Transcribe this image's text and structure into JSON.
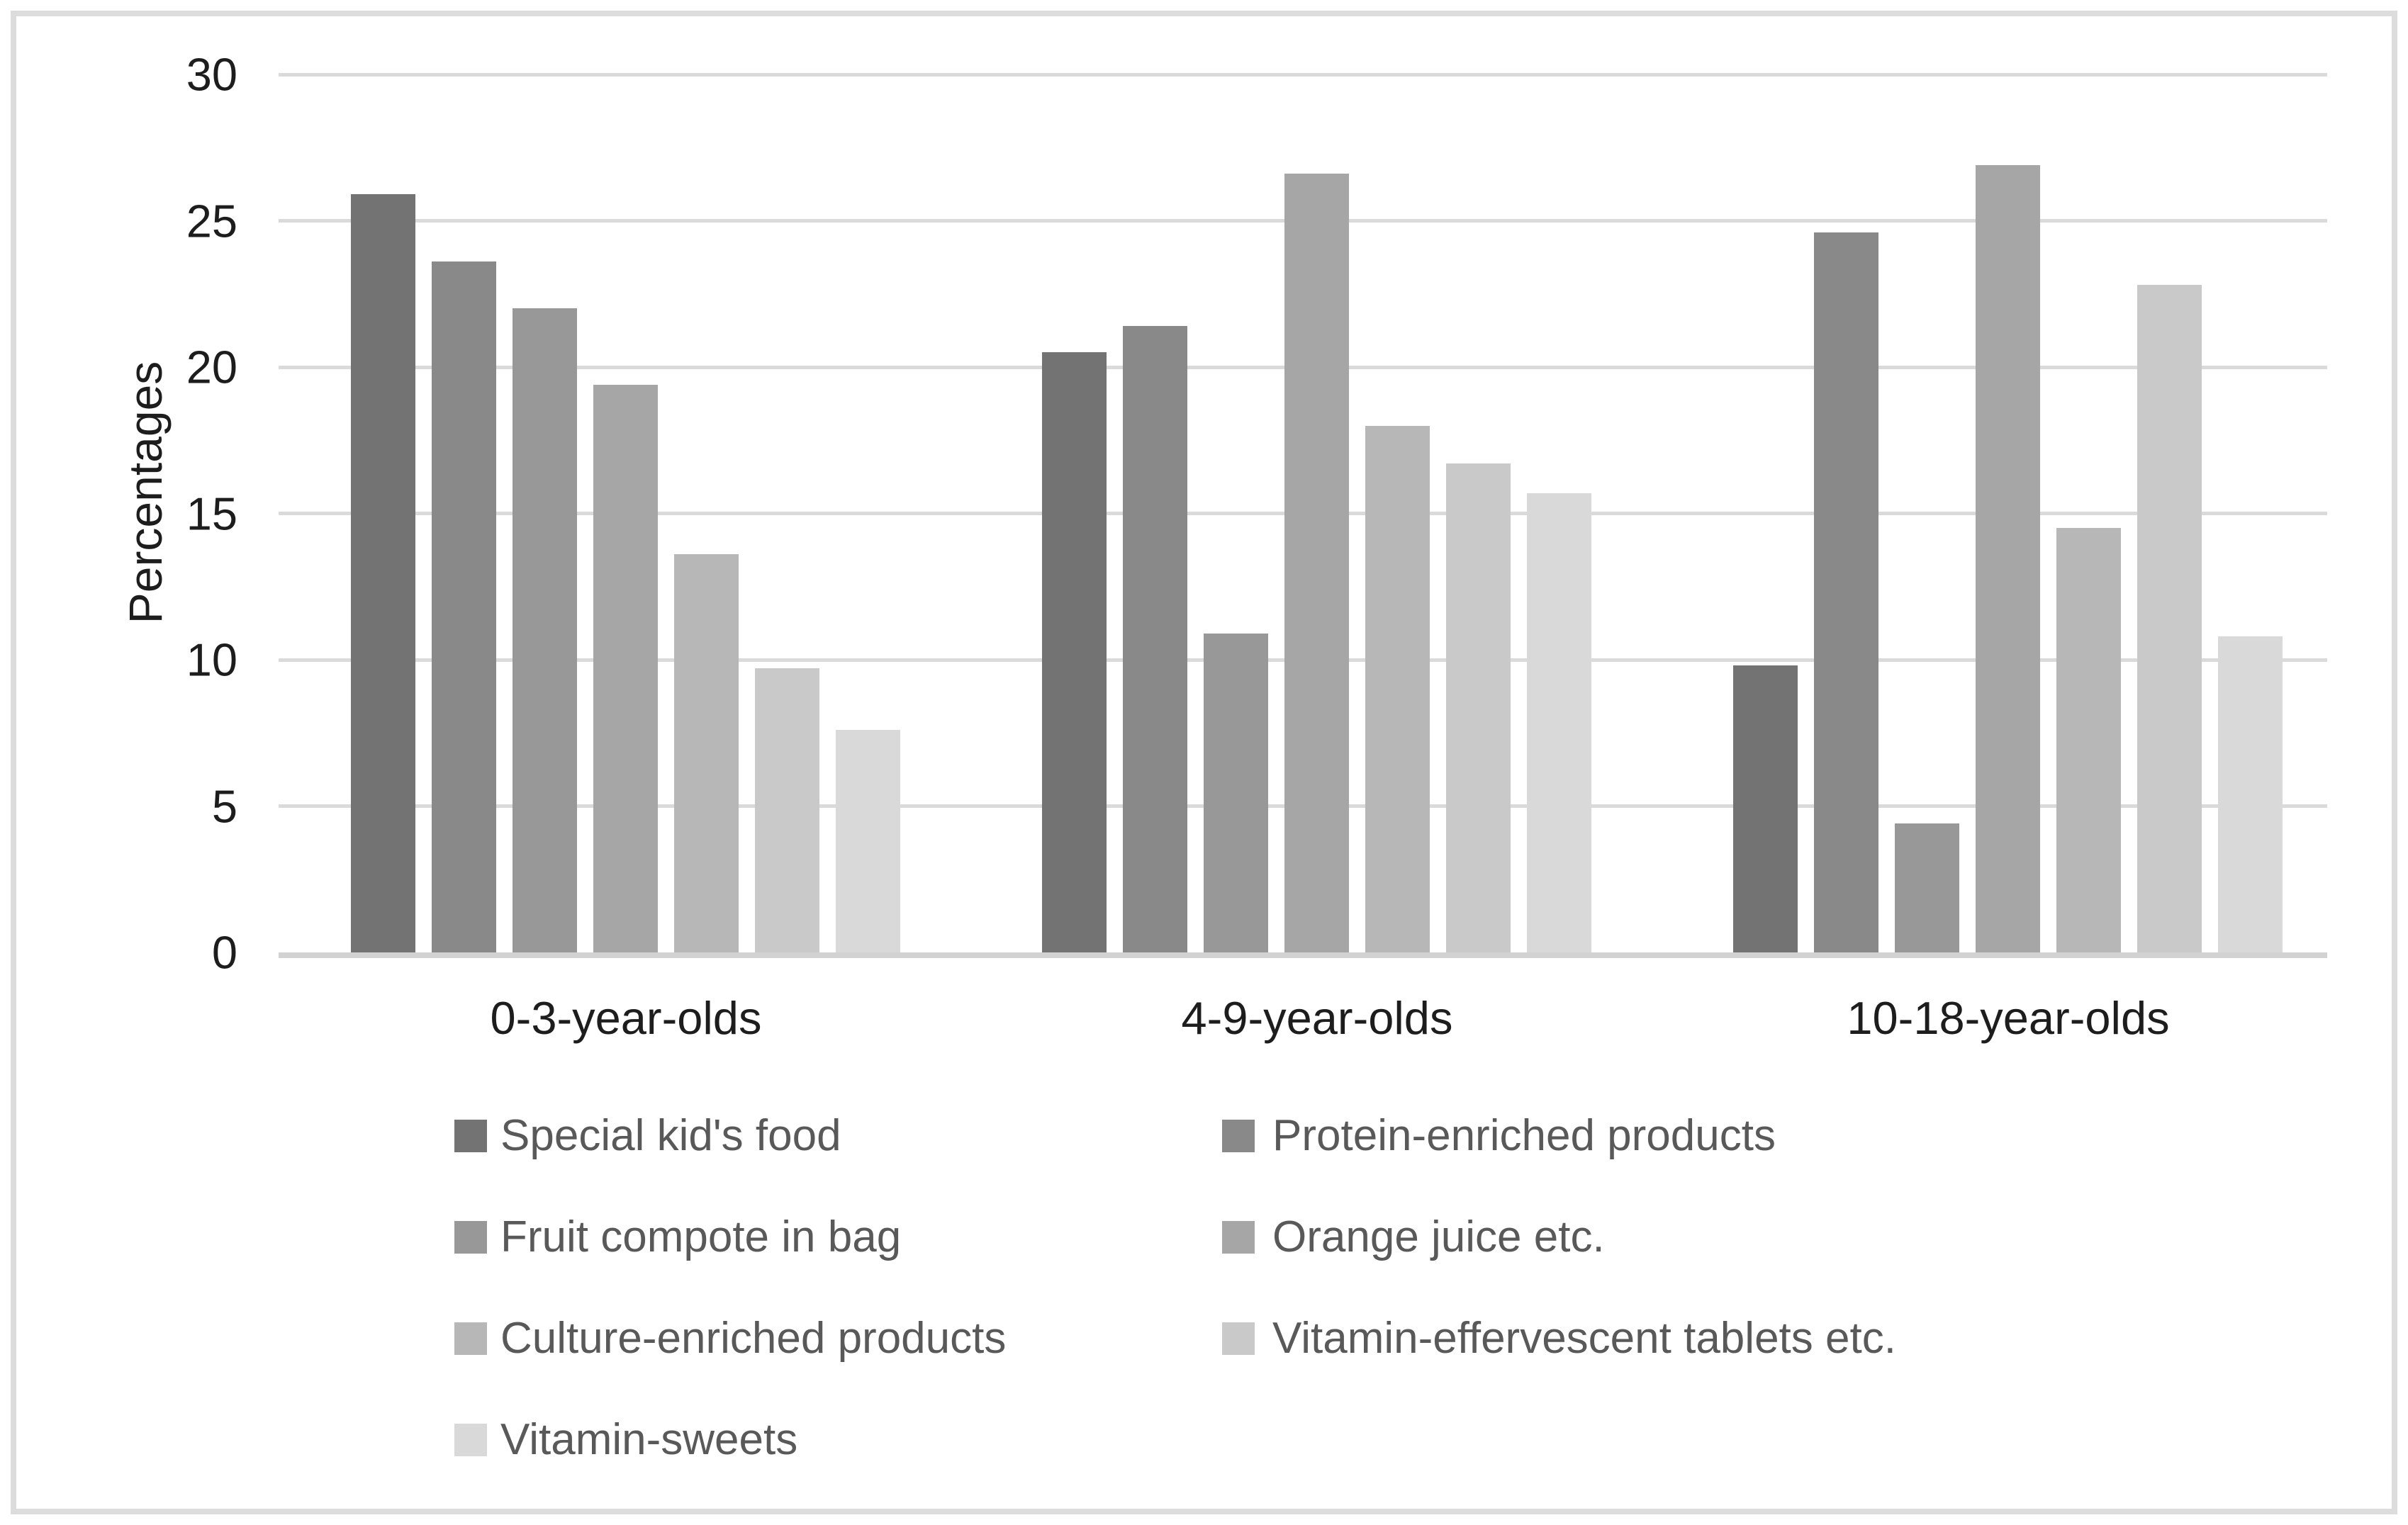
{
  "chart_data": {
    "type": "bar",
    "title": "",
    "xlabel": "",
    "ylabel": "Percentages",
    "ylim": [
      0,
      30
    ],
    "yticks": [
      0,
      5,
      10,
      15,
      20,
      25,
      30
    ],
    "grid": true,
    "legend_position": "bottom-two-columns",
    "background": "#ffffff",
    "frame_color": "#dcdcdc",
    "categories": [
      "0-3-year-olds",
      "4-9-year-olds",
      "10-18-year-olds"
    ],
    "series": [
      {
        "name": "Special kid's food",
        "color": "#737373",
        "values": [
          25.9,
          20.5,
          9.8
        ]
      },
      {
        "name": "Protein-enriched products",
        "color": "#898989",
        "values": [
          23.6,
          21.4,
          24.6
        ]
      },
      {
        "name": "Fruit compote in bag",
        "color": "#989898",
        "values": [
          22.0,
          10.9,
          4.4
        ]
      },
      {
        "name": "Orange juice etc.",
        "color": "#a6a6a6",
        "values": [
          19.4,
          26.6,
          26.9
        ]
      },
      {
        "name": "Culture-enriched products",
        "color": "#b7b7b7",
        "values": [
          13.6,
          18.0,
          14.5
        ]
      },
      {
        "name": "Vitamin-effervescent tablets etc.",
        "color": "#c9c9c9",
        "values": [
          9.7,
          16.7,
          22.8
        ]
      },
      {
        "name": "Vitamin-sweets",
        "color": "#d9d9d9",
        "values": [
          7.6,
          15.7,
          10.8
        ]
      }
    ],
    "legend_columns": [
      {
        "series_indexes": [
          0,
          2,
          4,
          6
        ]
      },
      {
        "series_indexes": [
          1,
          3,
          5
        ]
      }
    ]
  }
}
